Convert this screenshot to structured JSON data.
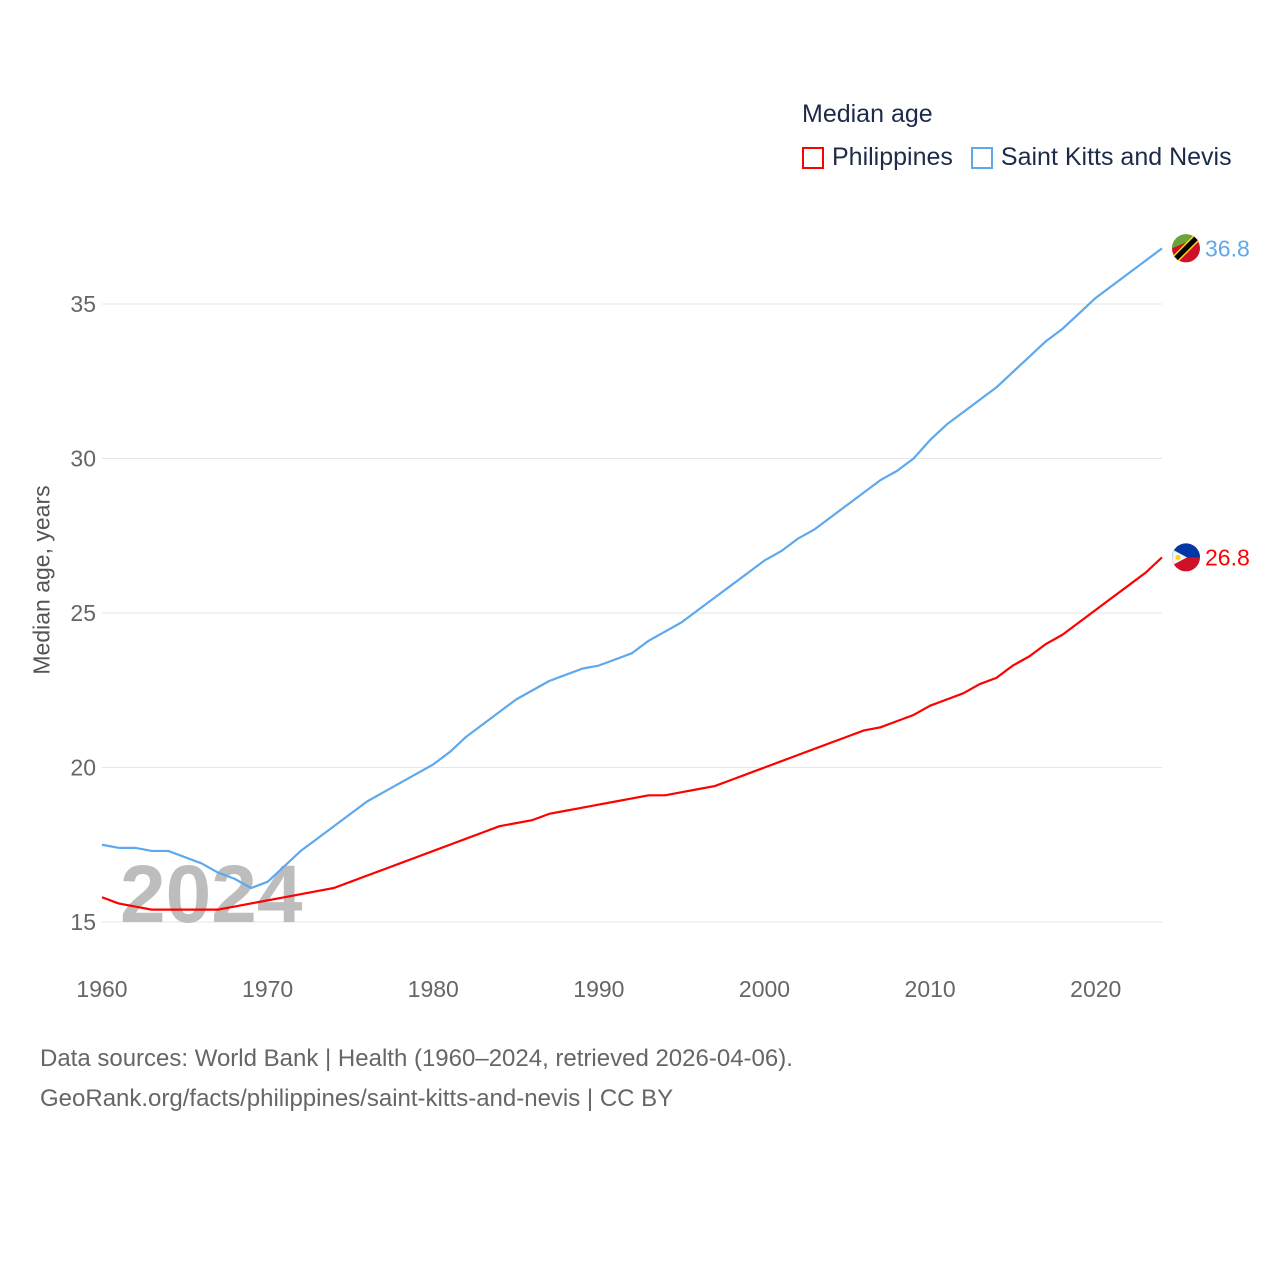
{
  "chart_data": {
    "type": "line",
    "title": "Median age",
    "ylabel": "Median age, years",
    "xlabel": "",
    "xlim": [
      1960,
      2024
    ],
    "ylim": [
      15,
      35
    ],
    "x_ticks": [
      1960,
      1970,
      1980,
      1990,
      2000,
      2010,
      2020
    ],
    "y_ticks": [
      15,
      20,
      25,
      30,
      35
    ],
    "grid": "horizontal",
    "legend_position": "top-right",
    "watermark_year": "2024",
    "x": [
      1960,
      1961,
      1962,
      1963,
      1964,
      1965,
      1966,
      1967,
      1968,
      1969,
      1970,
      1971,
      1972,
      1973,
      1974,
      1975,
      1976,
      1977,
      1978,
      1979,
      1980,
      1981,
      1982,
      1983,
      1984,
      1985,
      1986,
      1987,
      1988,
      1989,
      1990,
      1991,
      1992,
      1993,
      1994,
      1995,
      1996,
      1997,
      1998,
      1999,
      2000,
      2001,
      2002,
      2003,
      2004,
      2005,
      2006,
      2007,
      2008,
      2009,
      2010,
      2011,
      2012,
      2013,
      2014,
      2015,
      2016,
      2017,
      2018,
      2019,
      2020,
      2021,
      2022,
      2023,
      2024
    ],
    "series": [
      {
        "name": "Philippines",
        "color": "#ff0000",
        "end_label": "26.8",
        "values": [
          15.8,
          15.6,
          15.5,
          15.4,
          15.4,
          15.4,
          15.4,
          15.4,
          15.5,
          15.6,
          15.7,
          15.8,
          15.9,
          16.0,
          16.1,
          16.3,
          16.5,
          16.7,
          16.9,
          17.1,
          17.3,
          17.5,
          17.7,
          17.9,
          18.1,
          18.2,
          18.3,
          18.5,
          18.6,
          18.7,
          18.8,
          18.9,
          19.0,
          19.1,
          19.1,
          19.2,
          19.3,
          19.4,
          19.6,
          19.8,
          20.0,
          20.2,
          20.4,
          20.6,
          20.8,
          21.0,
          21.2,
          21.3,
          21.5,
          21.7,
          22.0,
          22.2,
          22.4,
          22.7,
          22.9,
          23.3,
          23.6,
          24.0,
          24.3,
          24.7,
          25.1,
          25.5,
          25.9,
          26.3,
          26.8
        ]
      },
      {
        "name": "Saint Kitts and Nevis",
        "color": "#5ea8ec",
        "end_label": "36.8",
        "values": [
          17.5,
          17.4,
          17.4,
          17.3,
          17.3,
          17.1,
          16.9,
          16.6,
          16.4,
          16.1,
          16.3,
          16.8,
          17.3,
          17.7,
          18.1,
          18.5,
          18.9,
          19.2,
          19.5,
          19.8,
          20.1,
          20.5,
          21.0,
          21.4,
          21.8,
          22.2,
          22.5,
          22.8,
          23.0,
          23.2,
          23.3,
          23.5,
          23.7,
          24.1,
          24.4,
          24.7,
          25.1,
          25.5,
          25.9,
          26.3,
          26.7,
          27.0,
          27.4,
          27.7,
          28.1,
          28.5,
          28.9,
          29.3,
          29.6,
          30.0,
          30.6,
          31.1,
          31.5,
          31.9,
          32.3,
          32.8,
          33.3,
          33.8,
          34.2,
          34.7,
          35.2,
          35.6,
          36.0,
          36.4,
          36.8
        ]
      }
    ]
  },
  "footer": {
    "line1": "Data sources: World Bank | Health (1960–2024, retrieved 2026-04-06).",
    "line2": "GeoRank.org/facts/philippines/saint-kitts-and-nevis | CC BY"
  }
}
